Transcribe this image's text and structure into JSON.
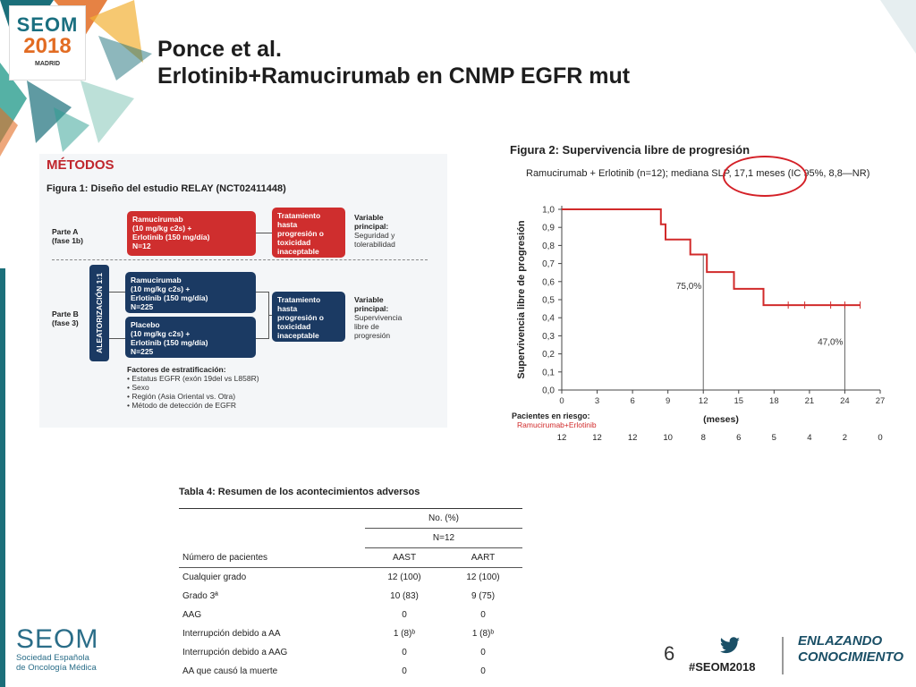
{
  "header": {
    "logo": {
      "line1": "SEOM",
      "line2": "2018",
      "line3": "MADRID"
    },
    "title_line1": "Ponce et al.",
    "title_line2": "Erlotinib+Ramucirumab en CNMP EGFR mut"
  },
  "methods": {
    "heading": "MÉTODOS",
    "figure_title": "Figura 1: Diseño del estudio RELAY (NCT02411448)",
    "part_a": {
      "label1": "Parte A",
      "label2": "(fase 1b)",
      "arm_l1": "Ramucirumab",
      "arm_l2": "(10 mg/kg c2s) +",
      "arm_l3": "Erlotinib (150 mg/día)",
      "arm_l4": "N=12",
      "treat_l1": "Tratamiento",
      "treat_l2": "hasta",
      "treat_l3": "progresión o",
      "treat_l4": "toxicidad",
      "treat_l5": "inaceptable",
      "end_l1": "Variable",
      "end_l2": "principal:",
      "end_l3": "Seguridad y",
      "end_l4": "tolerabilidad"
    },
    "part_b": {
      "label1": "Parte B",
      "label2": "(fase 3)",
      "randomization": "ALEATORIZACIÓN 1:1",
      "arm1_l1": "Ramucirumab",
      "arm1_l2": "(10 mg/kg c2s) +",
      "arm1_l3": "Erlotinib (150 mg/día)",
      "arm1_l4": "N=225",
      "arm2_l1": "Placebo",
      "arm2_l2": "(10 mg/kg c2s) +",
      "arm2_l3": "Erlotinib (150 mg/día)",
      "arm2_l4": "N=225",
      "treat_l1": "Tratamiento",
      "treat_l2": "hasta",
      "treat_l3": "progresión o",
      "treat_l4": "toxicidad",
      "treat_l5": "inaceptable",
      "end_l1": "Variable",
      "end_l2": "principal:",
      "end_l3": "Supervivencia",
      "end_l4": "libre de",
      "end_l5": "progresión"
    },
    "strat_title": "Factores de estratificación:",
    "strat_items": [
      "• Estatus EGFR (exón 19del vs L858R)",
      "• Sexo",
      "• Región (Asia Oriental vs. Otra)",
      "• Método de detección de EGFR"
    ]
  },
  "figure2": {
    "title": "Figura 2: Supervivencia libre de progresión",
    "subtitle": "Ramucirumab + Erlotinib (n=12); mediana SLP, 17,1 meses (IC 95%, 8,8—NR)"
  },
  "chart_data": {
    "type": "line",
    "ylabel": "Supervivencia libre de progresión",
    "xlabel": "(meses)",
    "xlim": [
      0,
      27
    ],
    "ylim": [
      0,
      1.0
    ],
    "x_ticks": [
      0,
      3,
      6,
      9,
      12,
      15,
      18,
      21,
      24,
      27
    ],
    "y_ticks": [
      0.0,
      0.1,
      0.2,
      0.3,
      0.4,
      0.5,
      0.6,
      0.7,
      0.8,
      0.9,
      1.0
    ],
    "y_tick_labels": [
      "0,0",
      "0,1",
      "0,2",
      "0,3",
      "0,4",
      "0,5",
      "0,6",
      "0,7",
      "0,8",
      "0,9",
      "1,0"
    ],
    "series": [
      {
        "name": "Ramucirumab+Erlotinib",
        "color": "#d12a2a",
        "step_x": [
          0,
          8.4,
          8.4,
          8.8,
          8.8,
          10.9,
          10.9,
          12.3,
          12.3,
          14.6,
          14.6,
          17.1,
          17.1,
          25.3
        ],
        "step_y": [
          1.0,
          1.0,
          0.917,
          0.917,
          0.833,
          0.833,
          0.75,
          0.75,
          0.653,
          0.653,
          0.56,
          0.56,
          0.47,
          0.47
        ],
        "censor_x": [
          19.2,
          20.6,
          22.8,
          24.0,
          25.3
        ],
        "censor_y": [
          0.47,
          0.47,
          0.47,
          0.47,
          0.47
        ]
      }
    ],
    "reference_lines": [
      {
        "x": 12,
        "y": 0.75,
        "label": "75,0%"
      },
      {
        "x": 24,
        "y": 0.47,
        "label": "47,0%"
      }
    ],
    "risk_table": {
      "title": "Pacientes en riesgo:",
      "arm": "Ramucirumab+Erlotinib",
      "x": [
        0,
        3,
        6,
        9,
        12,
        15,
        18,
        21,
        24,
        27
      ],
      "values": [
        12,
        12,
        12,
        10,
        8,
        6,
        5,
        4,
        2,
        0
      ]
    }
  },
  "table4": {
    "title": "Tabla 4: Resumen de los acontecimientos adversos",
    "header_no": "No. (%)",
    "header_n": "N=12",
    "col0": "Número de pacientes",
    "col1": "AAST",
    "col2": "AART",
    "rows": [
      {
        "label": "Cualquier grado",
        "aast": "12 (100)",
        "aart": "12 (100)"
      },
      {
        "label": "Grado 3ª",
        "aast": "10 (83)",
        "aart": "9 (75)"
      },
      {
        "label": "AAG",
        "aast": "0",
        "aart": "0"
      },
      {
        "label": "Interrupción debido a AA",
        "aast": "1 (8)ᵇ",
        "aart": "1 (8)ᵇ"
      },
      {
        "label": "Interrupción debido a AAG",
        "aast": "0",
        "aart": "0"
      },
      {
        "label": "AA que causó la muerte",
        "aast": "0",
        "aart": "0"
      }
    ]
  },
  "footer": {
    "seom": "SEOM",
    "seom_sub1": "Sociedad Española",
    "seom_sub2": "de Oncología Médica",
    "page_number": "6",
    "hashtag": "#SEOM2018",
    "slogan1": "ENLAZANDO",
    "slogan2": "CONOCIMIENTO"
  },
  "colors": {
    "accent_red": "#d12a2a",
    "navy": "#1b3a63",
    "teal": "#1b6f7a"
  }
}
